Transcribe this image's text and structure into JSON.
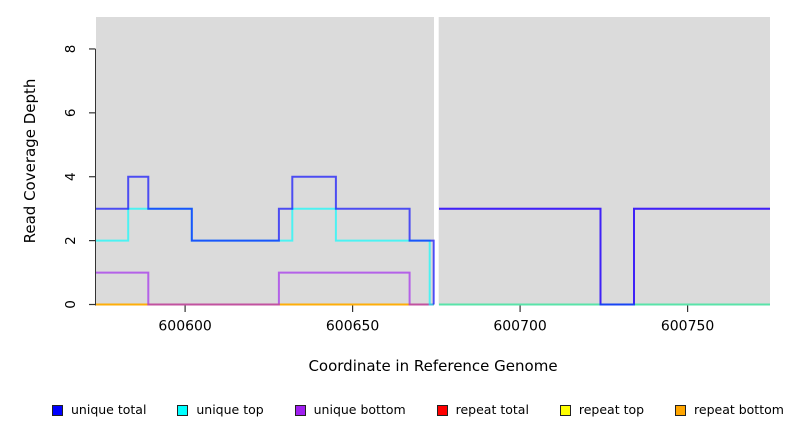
{
  "chart_data": {
    "type": "line",
    "title": "",
    "xlabel": "Coordinate in Reference Genome",
    "ylabel": "Read Coverage Depth",
    "xlim": [
      600573.4,
      600774.6
    ],
    "ylim": [
      0,
      9
    ],
    "x_ticks": [
      600600,
      600650,
      600700,
      600750
    ],
    "y_ticks": [
      0,
      2,
      4,
      6,
      8
    ],
    "grid": false,
    "plot_bg": "#dbdbdb",
    "gap_mask": {
      "from": 600674.3,
      "to": 600675.7,
      "color": "#ffffff"
    },
    "line_width": 2,
    "line_opacity": 0.65,
    "series": [
      {
        "name": "repeat total",
        "color": "#ff0000",
        "segments": [
          [
            [
              600573.4,
              0
            ],
            [
              600674.2,
              0
            ]
          ],
          [
            [
              600675.8,
              0
            ],
            [
              600774.6,
              0
            ]
          ]
        ]
      },
      {
        "name": "repeat top",
        "color": "#ffff00",
        "segments": [
          [
            [
              600573.4,
              0
            ],
            [
              600674.2,
              0
            ]
          ],
          [
            [
              600675.8,
              0
            ],
            [
              600774.6,
              0
            ]
          ]
        ]
      },
      {
        "name": "repeat bottom",
        "color": "#ffa500",
        "segments": [
          [
            [
              600573.4,
              0
            ],
            [
              600674.2,
              0
            ]
          ],
          [
            [
              600675.8,
              0
            ],
            [
              600774.6,
              0
            ]
          ]
        ]
      },
      {
        "name": "unique bottom",
        "color": "#a020f0",
        "segments": [
          [
            [
              600573.4,
              1
            ],
            [
              600589,
              0
            ],
            [
              600628,
              1
            ],
            [
              600667,
              0
            ],
            [
              600674.2,
              0
            ]
          ],
          [
            [
              600675.8,
              3
            ],
            [
              600724,
              0
            ],
            [
              600734,
              3
            ],
            [
              600774.6,
              3
            ]
          ]
        ]
      },
      {
        "name": "unique top",
        "color": "#00ffff",
        "segments": [
          [
            [
              600573.4,
              2
            ],
            [
              600583,
              3
            ],
            [
              600602,
              2
            ],
            [
              600632,
              3
            ],
            [
              600645,
              2
            ],
            [
              600673,
              0
            ],
            [
              600674.2,
              0
            ]
          ],
          [
            [
              600675.8,
              0
            ],
            [
              600774.6,
              0
            ]
          ]
        ]
      },
      {
        "name": "unique total",
        "color": "#0000ff",
        "segments": [
          [
            [
              600573.4,
              3
            ],
            [
              600583,
              4
            ],
            [
              600589,
              3
            ],
            [
              600602,
              2
            ],
            [
              600628,
              3
            ],
            [
              600632,
              4
            ],
            [
              600645,
              3
            ],
            [
              600667,
              2
            ],
            [
              600674.2,
              0
            ]
          ],
          [
            [
              600675.8,
              3
            ],
            [
              600724,
              0
            ],
            [
              600734,
              3
            ],
            [
              600774.6,
              3
            ]
          ]
        ]
      }
    ],
    "legend_position": "bottom"
  },
  "legend": {
    "items": [
      {
        "label": "unique total",
        "color": "#0000ff"
      },
      {
        "label": "unique top",
        "color": "#00ffff"
      },
      {
        "label": "unique bottom",
        "color": "#a020f0"
      },
      {
        "label": "repeat total",
        "color": "#ff0000"
      },
      {
        "label": "repeat top",
        "color": "#ffff00"
      },
      {
        "label": "repeat bottom",
        "color": "#ffa500"
      }
    ]
  }
}
